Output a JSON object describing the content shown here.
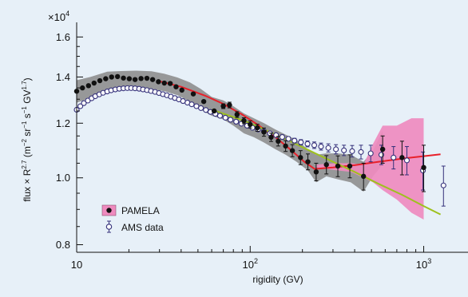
{
  "chart_data": {
    "type": "scatter",
    "x_scale": "log",
    "y_scale": "log",
    "xlim": [
      10,
      1800
    ],
    "ylim": [
      0.78,
      1.68
    ],
    "y_multiplier": "×10",
    "y_multiplier_exp": "4",
    "xlabel": "rigidity (GV)",
    "ylabel_parts": {
      "a": "flux × R",
      "a_sup": "2.7",
      "b": " (m",
      "b_sup": "−2",
      "c": " sr",
      "c_sup": "−1",
      "d": " s",
      "d_sup": "−1",
      "e": " GV",
      "e_sup": "1.7",
      "f": ")"
    },
    "x_ticks": [
      {
        "value": 10,
        "base": "10",
        "exp": ""
      },
      {
        "value": 100,
        "base": "10",
        "exp": "2"
      },
      {
        "value": 1000,
        "base": "10",
        "exp": "3"
      }
    ],
    "y_ticks": [
      {
        "value": 0.8,
        "label": "0.8"
      },
      {
        "value": 1.0,
        "label": "1.0"
      },
      {
        "value": 1.2,
        "label": "1.2"
      },
      {
        "value": 1.4,
        "label": "1.4"
      },
      {
        "value": 1.6,
        "label": "1.6"
      }
    ],
    "legend": [
      {
        "label": "PAMELA",
        "marker": "filled-circle-on-pink"
      },
      {
        "label": "AMS data",
        "marker": "open-circle"
      }
    ],
    "colors": {
      "background": "#e7f0f8",
      "pamela_band_grey": "#8e8e8e",
      "pamela_band_pink": "#ef8bbf",
      "pamela_points": "#111111",
      "ams_points": "#34307a",
      "fit_red": "#e8202a",
      "fit_green": "#9ec11e"
    },
    "series": [
      {
        "name": "PAMELA",
        "x": [
          10,
          10.8,
          11.7,
          12.6,
          13.6,
          14.7,
          15.9,
          17.2,
          18.6,
          20.1,
          21.7,
          23.5,
          25.4,
          27.4,
          29.6,
          32,
          34.6,
          37.4,
          40.4,
          47,
          54,
          62,
          70,
          76,
          84,
          92,
          100,
          110,
          120,
          132,
          145,
          160,
          175,
          195,
          215,
          240,
          275,
          320,
          375,
          450,
          580,
          750,
          1000
        ],
        "y": [
          1.335,
          1.35,
          1.36,
          1.372,
          1.383,
          1.392,
          1.4,
          1.402,
          1.395,
          1.392,
          1.388,
          1.393,
          1.394,
          1.388,
          1.378,
          1.372,
          1.37,
          1.355,
          1.34,
          1.323,
          1.29,
          1.25,
          1.27,
          1.275,
          1.235,
          1.21,
          1.195,
          1.182,
          1.165,
          1.145,
          1.13,
          1.112,
          1.095,
          1.07,
          1.055,
          1.02,
          1.045,
          1.04,
          1.04,
          1.005,
          1.1,
          1.07,
          1.035
        ],
        "yerr": [
          0.004,
          0.004,
          0.004,
          0.004,
          0.004,
          0.004,
          0.004,
          0.004,
          0.004,
          0.004,
          0.004,
          0.004,
          0.004,
          0.004,
          0.004,
          0.004,
          0.004,
          0.004,
          0.005,
          0.006,
          0.006,
          0.008,
          0.01,
          0.012,
          0.012,
          0.012,
          0.014,
          0.014,
          0.016,
          0.016,
          0.018,
          0.02,
          0.022,
          0.025,
          0.028,
          0.03,
          0.032,
          0.036,
          0.04,
          0.045,
          0.05,
          0.06,
          0.08
        ]
      },
      {
        "name": "AMS data",
        "x": [
          10,
          10.5,
          11,
          11.6,
          12.2,
          12.8,
          13.5,
          14.2,
          15,
          15.8,
          16.7,
          17.6,
          18.6,
          19.6,
          20.6,
          21.7,
          22.9,
          24.1,
          25.4,
          26.8,
          28.3,
          29.8,
          31.4,
          33.1,
          34.9,
          36.8,
          38.8,
          41,
          43.5,
          46,
          49,
          52,
          55.5,
          59,
          63,
          67,
          72,
          77,
          83,
          89,
          96,
          103,
          111,
          120,
          130,
          141,
          153,
          166,
          180,
          196,
          214,
          234,
          256,
          282,
          312,
          347,
          387,
          435,
          495,
          570,
          670,
          800,
          990,
          1300
        ],
        "y": [
          1.255,
          1.27,
          1.283,
          1.294,
          1.304,
          1.313,
          1.321,
          1.328,
          1.334,
          1.339,
          1.343,
          1.346,
          1.348,
          1.349,
          1.349,
          1.348,
          1.346,
          1.343,
          1.34,
          1.336,
          1.332,
          1.327,
          1.322,
          1.317,
          1.311,
          1.305,
          1.299,
          1.292,
          1.285,
          1.278,
          1.27,
          1.262,
          1.254,
          1.246,
          1.238,
          1.23,
          1.222,
          1.214,
          1.206,
          1.198,
          1.19,
          1.182,
          1.175,
          1.168,
          1.16,
          1.153,
          1.146,
          1.139,
          1.132,
          1.126,
          1.12,
          1.115,
          1.11,
          1.105,
          1.1,
          1.096,
          1.093,
          1.09,
          1.085,
          1.08,
          1.07,
          1.06,
          1.025,
          0.975
        ],
        "yerr": [
          0.003,
          0.003,
          0.003,
          0.003,
          0.003,
          0.003,
          0.003,
          0.003,
          0.003,
          0.003,
          0.003,
          0.003,
          0.003,
          0.003,
          0.003,
          0.003,
          0.003,
          0.003,
          0.003,
          0.003,
          0.003,
          0.003,
          0.003,
          0.003,
          0.003,
          0.003,
          0.003,
          0.003,
          0.003,
          0.003,
          0.003,
          0.003,
          0.003,
          0.003,
          0.004,
          0.004,
          0.004,
          0.004,
          0.005,
          0.005,
          0.005,
          0.006,
          0.006,
          0.006,
          0.007,
          0.007,
          0.008,
          0.008,
          0.009,
          0.01,
          0.011,
          0.012,
          0.013,
          0.015,
          0.017,
          0.019,
          0.021,
          0.025,
          0.03,
          0.035,
          0.04,
          0.05,
          0.065,
          0.065
        ]
      }
    ],
    "bands": [
      {
        "name": "pamela-systematic-band",
        "color_key": "pamela_band_grey",
        "x": [
          10,
          12,
          15,
          18,
          22,
          27,
          32,
          38,
          45,
          52,
          60,
          70,
          80,
          92,
          105,
          120,
          140,
          160,
          185,
          215,
          240,
          275,
          320,
          380,
          450,
          510,
          580
        ],
        "upper": [
          1.385,
          1.4,
          1.425,
          1.428,
          1.43,
          1.427,
          1.415,
          1.398,
          1.375,
          1.345,
          1.31,
          1.295,
          1.27,
          1.24,
          1.22,
          1.2,
          1.175,
          1.155,
          1.135,
          1.1,
          1.08,
          1.085,
          1.085,
          1.08,
          1.055,
          1.095,
          1.17
        ],
        "lower": [
          1.285,
          1.305,
          1.33,
          1.345,
          1.35,
          1.345,
          1.335,
          1.318,
          1.29,
          1.255,
          1.23,
          1.215,
          1.19,
          1.16,
          1.145,
          1.125,
          1.1,
          1.08,
          1.055,
          1.025,
          0.985,
          1.005,
          0.995,
          0.985,
          0.955,
          1.005,
          1.045
        ]
      },
      {
        "name": "pamela-high-energy-band",
        "color_key": "pamela_band_pink",
        "x": [
          240,
          275,
          320,
          380,
          450,
          510,
          580,
          700,
          850,
          1000
        ],
        "upper": [
          1.045,
          1.048,
          1.05,
          1.05,
          1.045,
          1.12,
          1.19,
          1.19,
          1.22,
          1.22
        ],
        "lower": [
          1.035,
          1.03,
          1.025,
          1.02,
          1.0,
          0.985,
          0.96,
          0.93,
          0.89,
          0.87
        ]
      }
    ],
    "curves": [
      {
        "name": "red-fit-curve",
        "color_key": "fit_red",
        "x": [
          30,
          40,
          55,
          70,
          90,
          110,
          140,
          170,
          205,
          235,
          300,
          400,
          550,
          750,
          1000,
          1250
        ],
        "y": [
          1.38,
          1.355,
          1.315,
          1.28,
          1.235,
          1.195,
          1.145,
          1.1,
          1.055,
          1.03,
          1.035,
          1.043,
          1.055,
          1.066,
          1.075,
          1.082
        ]
      },
      {
        "name": "green-fit-curve",
        "color_key": "fit_green",
        "x": [
          60,
          80,
          100,
          130,
          170,
          220,
          300,
          400,
          550,
          750,
          1000,
          1250
        ],
        "y": [
          1.255,
          1.225,
          1.2,
          1.165,
          1.13,
          1.095,
          1.055,
          1.02,
          0.98,
          0.945,
          0.91,
          0.885
        ]
      }
    ]
  }
}
